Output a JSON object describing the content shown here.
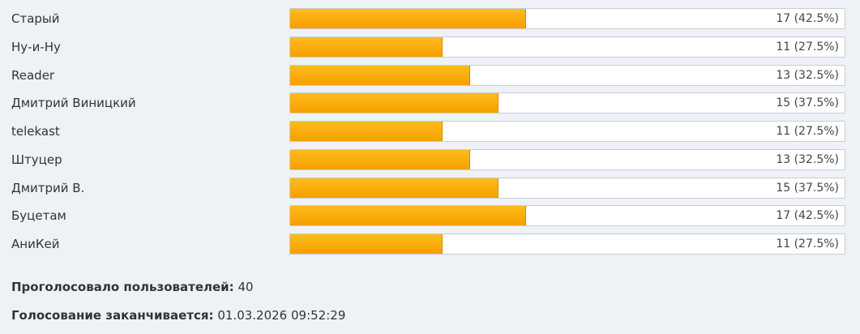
{
  "poll": {
    "options": [
      {
        "name": "Старый",
        "share": 42.5,
        "label": "17 (42.5%)"
      },
      {
        "name": "Ну-и-Ну",
        "share": 27.5,
        "label": "11 (27.5%)"
      },
      {
        "name": "Reader",
        "share": 32.5,
        "label": "13 (32.5%)"
      },
      {
        "name": "Дмитрий Виницкий",
        "share": 37.5,
        "label": "15 (37.5%)"
      },
      {
        "name": "telekast",
        "share": 27.5,
        "label": "11 (27.5%)"
      },
      {
        "name": "Штуцер",
        "share": 32.5,
        "label": "13 (32.5%)"
      },
      {
        "name": "Дмитрий В.",
        "share": 37.5,
        "label": "15 (37.5%)"
      },
      {
        "name": "Буцетам",
        "share": 42.5,
        "label": "17 (42.5%)"
      },
      {
        "name": "АниКей",
        "share": 27.5,
        "label": "11 (27.5%)"
      }
    ],
    "voters_label": "Проголосовало пользователей:",
    "voters": 40,
    "ends_label": "Голосование заканчивается:",
    "ends": "01.03.2026 09:52:29"
  }
}
